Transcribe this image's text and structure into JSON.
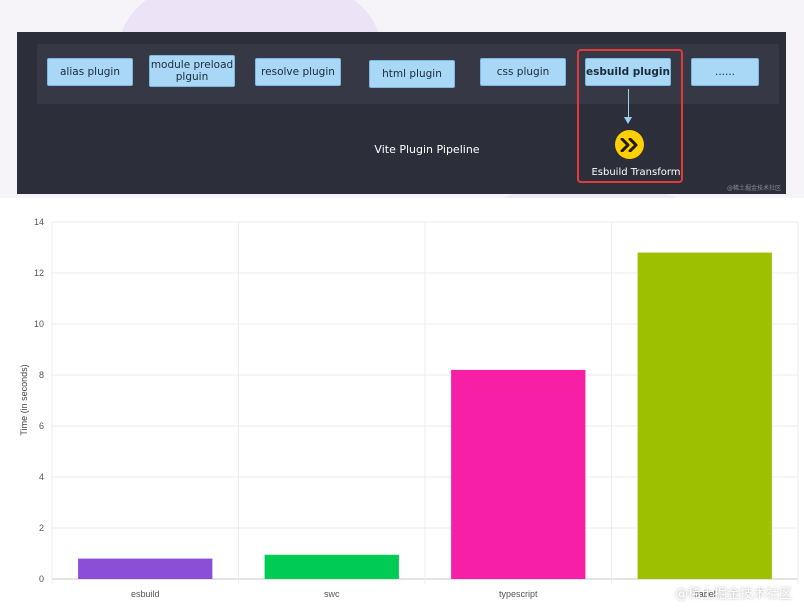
{
  "diagram": {
    "plugins": [
      {
        "label": "alias plugin"
      },
      {
        "label": "module preload plguin"
      },
      {
        "label": "resolve plugin"
      },
      {
        "label": "html plugin"
      },
      {
        "label": "css plugin"
      },
      {
        "label": "esbuild plugin"
      },
      {
        "label": "......"
      }
    ],
    "pipeline_label": "Vite Plugin Pipeline",
    "transform_label": "Esbuild Transform",
    "credit": "@稀土掘金技术社区",
    "colors": {
      "background": "#2c2e3a",
      "plugin_fill": "#a9d8f6",
      "highlight": "#e23b3b",
      "esbuild_logo": "#ffcf00"
    }
  },
  "chart_data": {
    "type": "bar",
    "categories": [
      "esbuild",
      "swc",
      "typescript",
      "babel"
    ],
    "values": [
      0.8,
      0.95,
      8.2,
      12.8
    ],
    "colors": [
      "#8a4fd6",
      "#00cc55",
      "#f71fa5",
      "#9dc100"
    ],
    "xlabel": "",
    "ylabel": "Time (in seconds)",
    "ylim": [
      0,
      14
    ],
    "yticks": [
      0,
      2,
      4,
      6,
      8,
      10,
      12,
      14
    ],
    "grid": true,
    "legend": "none"
  },
  "watermark": "@稀土掘金技术社区"
}
